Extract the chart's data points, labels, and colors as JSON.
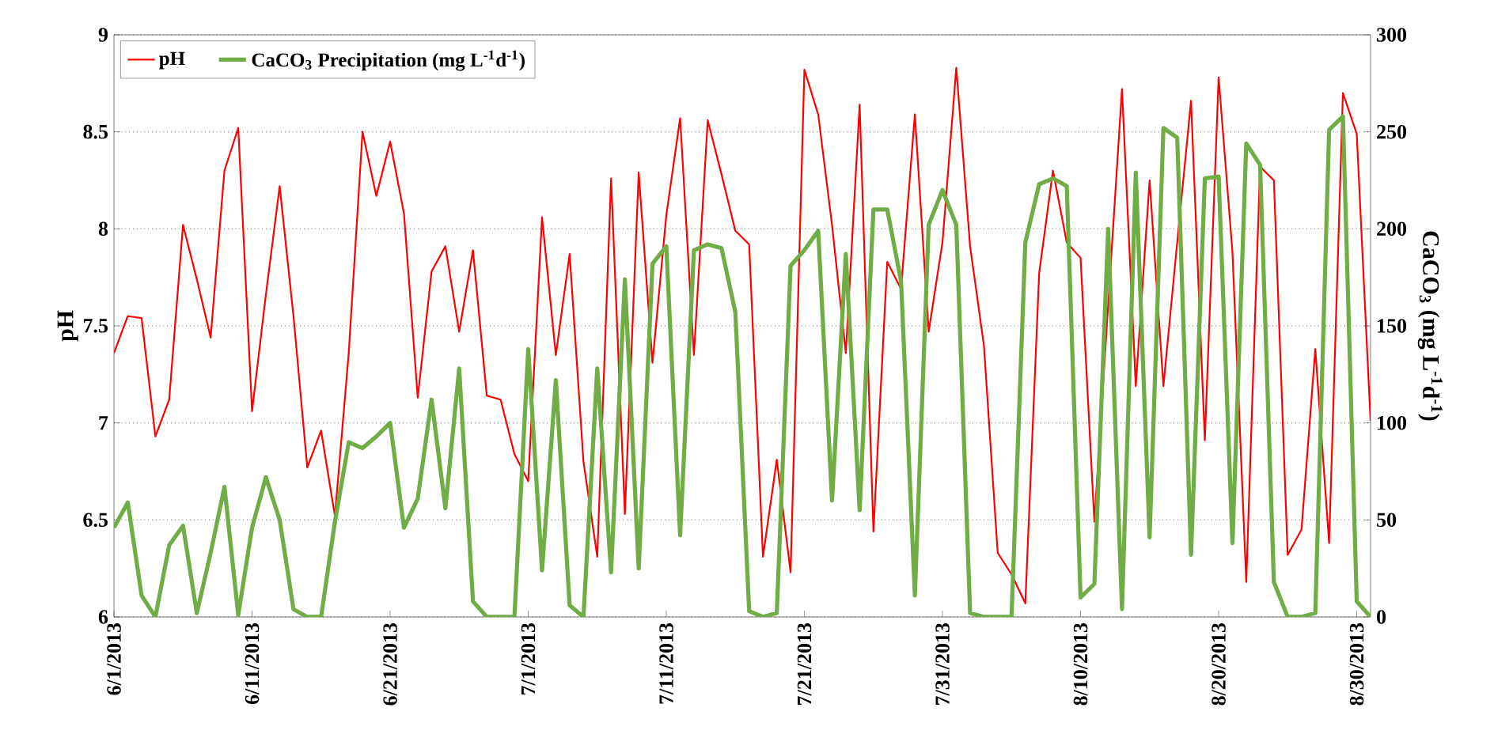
{
  "chart_data": {
    "type": "line",
    "x": [
      "2013-06-01",
      "2013-06-02",
      "2013-06-03",
      "2013-06-04",
      "2013-06-05",
      "2013-06-06",
      "2013-06-07",
      "2013-06-08",
      "2013-06-09",
      "2013-06-10",
      "2013-06-11",
      "2013-06-12",
      "2013-06-13",
      "2013-06-14",
      "2013-06-15",
      "2013-06-16",
      "2013-06-17",
      "2013-06-18",
      "2013-06-19",
      "2013-06-20",
      "2013-06-21",
      "2013-06-22",
      "2013-06-23",
      "2013-06-24",
      "2013-06-25",
      "2013-06-26",
      "2013-06-27",
      "2013-06-28",
      "2013-06-29",
      "2013-06-30",
      "2013-07-01",
      "2013-07-02",
      "2013-07-03",
      "2013-07-04",
      "2013-07-05",
      "2013-07-06",
      "2013-07-07",
      "2013-07-08",
      "2013-07-09",
      "2013-07-10",
      "2013-07-11",
      "2013-07-12",
      "2013-07-13",
      "2013-07-14",
      "2013-07-15",
      "2013-07-16",
      "2013-07-17",
      "2013-07-18",
      "2013-07-19",
      "2013-07-20",
      "2013-07-21",
      "2013-07-22",
      "2013-07-23",
      "2013-07-24",
      "2013-07-25",
      "2013-07-26",
      "2013-07-27",
      "2013-07-28",
      "2013-07-29",
      "2013-07-30",
      "2013-07-31",
      "2013-08-01",
      "2013-08-02",
      "2013-08-03",
      "2013-08-04",
      "2013-08-05",
      "2013-08-06",
      "2013-08-07",
      "2013-08-08",
      "2013-08-09",
      "2013-08-10",
      "2013-08-11",
      "2013-08-12",
      "2013-08-13",
      "2013-08-14",
      "2013-08-15",
      "2013-08-16",
      "2013-08-17",
      "2013-08-18",
      "2013-08-19",
      "2013-08-20",
      "2013-08-21",
      "2013-08-22",
      "2013-08-23",
      "2013-08-24",
      "2013-08-25",
      "2013-08-26",
      "2013-08-27",
      "2013-08-28",
      "2013-08-29",
      "2013-08-30",
      "2013-08-31"
    ],
    "series": [
      {
        "name": "pH",
        "color": "#ff0000",
        "values": [
          7.36,
          7.55,
          7.54,
          6.93,
          7.12,
          8.02,
          7.74,
          7.44,
          8.3,
          8.52,
          7.06,
          7.66,
          8.22,
          7.55,
          6.77,
          6.96,
          6.52,
          7.36,
          8.5,
          8.17,
          8.45,
          8.08,
          7.13,
          7.78,
          7.91,
          7.47,
          7.89,
          7.14,
          7.12,
          6.84,
          6.7,
          8.06,
          7.35,
          7.87,
          6.8,
          6.31,
          8.26,
          6.53,
          8.29,
          7.31,
          8.07,
          8.57,
          7.35,
          8.56,
          8.28,
          7.99,
          7.92,
          6.31,
          6.81,
          6.23,
          8.82,
          8.59,
          8.02,
          7.36,
          8.64,
          6.44,
          7.83,
          7.69,
          8.59,
          7.47,
          7.93,
          8.83,
          7.91,
          7.4,
          6.33,
          6.22,
          6.07,
          7.77,
          8.3,
          7.93,
          7.85,
          6.49,
          7.61,
          8.72,
          7.19,
          8.25,
          7.19,
          7.93,
          8.66,
          6.91,
          8.78,
          7.88,
          6.18,
          8.32,
          8.25,
          6.32,
          6.45,
          7.38,
          6.38,
          8.7,
          8.49,
          7.01
        ]
      },
      {
        "name": "CaCO$_{3}$ Precipitation (mg L$^{-1}$d$^{-1}$)",
        "color": "#70ad47",
        "axis": "y2",
        "values": [
          46,
          59,
          11,
          0,
          37,
          47,
          2,
          33,
          67,
          1,
          46,
          72,
          50,
          4,
          0,
          0,
          49,
          90,
          87,
          93,
          100,
          46,
          61,
          112,
          56,
          128,
          8,
          0,
          0,
          0,
          138,
          24,
          122,
          6,
          0,
          128,
          23,
          174,
          25,
          182,
          191,
          42,
          189,
          192,
          190,
          157,
          3,
          0,
          2,
          181,
          189,
          199,
          60,
          187,
          55,
          210,
          210,
          173,
          11,
          202,
          220,
          202,
          2,
          0,
          0,
          0,
          193,
          223,
          226,
          222,
          10,
          17,
          200,
          4,
          229,
          41,
          252,
          247,
          32,
          226,
          227,
          38,
          244,
          233,
          18,
          0,
          0,
          2,
          251,
          258,
          8,
          0
        ]
      }
    ],
    "xlim": [
      "2013-06-01",
      "2013-08-31"
    ],
    "xticks": [
      {
        "value": "2013-06-01",
        "label": "6/1/2013"
      },
      {
        "value": "2013-06-11",
        "label": "6/11/2013"
      },
      {
        "value": "2013-06-21",
        "label": "6/21/2013"
      },
      {
        "value": "2013-07-01",
        "label": "7/1/2013"
      },
      {
        "value": "2013-07-11",
        "label": "7/11/2013"
      },
      {
        "value": "2013-07-21",
        "label": "7/21/2013"
      },
      {
        "value": "2013-07-31",
        "label": "7/31/2013"
      },
      {
        "value": "2013-08-10",
        "label": "8/10/2013"
      },
      {
        "value": "2013-08-20",
        "label": "8/20/2013"
      },
      {
        "value": "2013-08-30",
        "label": "8/30/2013"
      }
    ],
    "ylim": [
      6,
      9
    ],
    "yticks": [
      6,
      6.5,
      7,
      7.5,
      8,
      8.5,
      9
    ],
    "y2lim": [
      0,
      300
    ],
    "y2ticks": [
      0,
      50,
      100,
      150,
      200,
      250,
      300
    ],
    "ylabel": "pH",
    "y2label": "CaCO$_{3}$ (mg L$^{-1}$d$^{-1}$)",
    "grid": "y",
    "legend": "top left"
  }
}
